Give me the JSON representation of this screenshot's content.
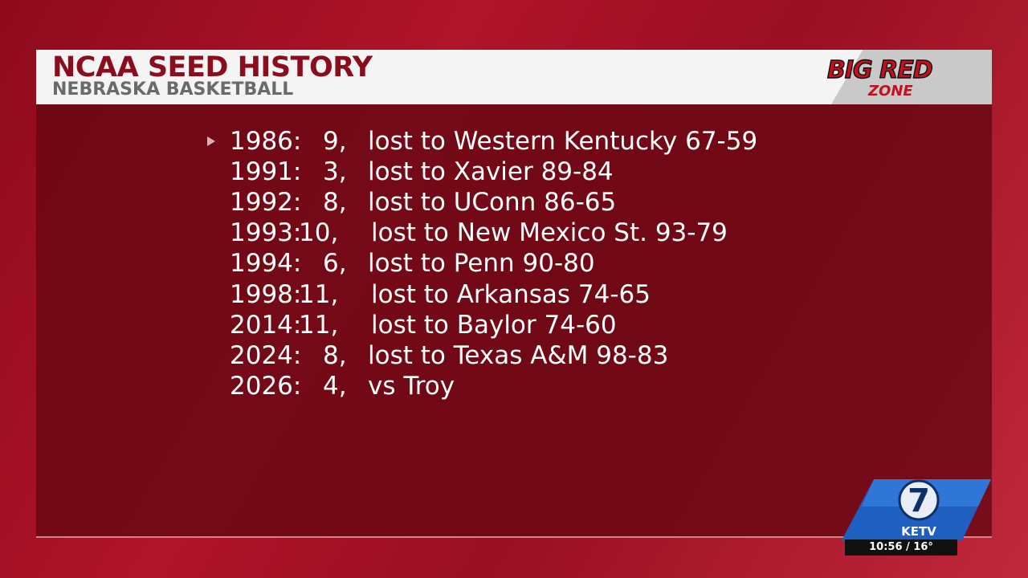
{
  "header": {
    "title": "NCAA SEED HISTORY",
    "subtitle": "NEBRASKA BASKETBALL",
    "logo_top": "BIG RED",
    "logo_bottom": "ZONE"
  },
  "rows": [
    {
      "year": "1986:",
      "seed": "9,",
      "result": "lost to Western Kentucky 67-59"
    },
    {
      "year": "1991:",
      "seed": "3,",
      "result": "lost to Xavier 89-84"
    },
    {
      "year": "1992:",
      "seed": "8,",
      "result": "lost to UConn 86-65"
    },
    {
      "year": "1993:",
      "seed": "10,",
      "result": "lost to New Mexico St. 93-79"
    },
    {
      "year": "1994:",
      "seed": "6,",
      "result": "lost to Penn 90-80"
    },
    {
      "year": "1998:",
      "seed": "11,",
      "result": "lost to Arkansas 74-65"
    },
    {
      "year": "2014:",
      "seed": "11,",
      "result": "lost to Baylor 74-60"
    },
    {
      "year": "2024:",
      "seed": "8,",
      "result": "lost to Texas A&M 98-83"
    },
    {
      "year": "2026:",
      "seed": "4,",
      "result": "vs Troy"
    }
  ],
  "station": {
    "channel": "7",
    "name": "KETV",
    "time_temp": "10:56 / 16°"
  }
}
